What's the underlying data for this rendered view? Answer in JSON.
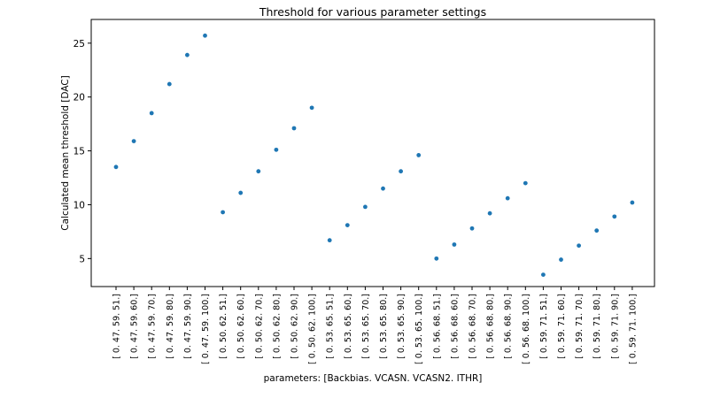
{
  "chart_data": {
    "type": "scatter",
    "title": "Threshold for various parameter settings",
    "xlabel": "parameters: [Backbias. VCASN. VCASN2. ITHR]",
    "ylabel": "Calculated mean threshold [DAC]",
    "categories": [
      "[ 0. 47. 59. 51.]",
      "[ 0. 47. 59. 60.]",
      "[ 0. 47. 59. 70.]",
      "[ 0. 47. 59. 80.]",
      "[ 0. 47. 59. 90.]",
      "[  0.  47.  59. 100.]",
      "[ 0. 50. 62. 51.]",
      "[ 0. 50. 62. 60.]",
      "[ 0. 50. 62. 70.]",
      "[ 0. 50. 62. 80.]",
      "[ 0. 50. 62. 90.]",
      "[  0.  50.  62. 100.]",
      "[ 0. 53. 65. 51.]",
      "[ 0. 53. 65. 60.]",
      "[ 0. 53. 65. 70.]",
      "[ 0. 53. 65. 80.]",
      "[ 0. 53. 65. 90.]",
      "[  0.  53.  65. 100.]",
      "[ 0. 56. 68. 51.]",
      "[ 0. 56. 68. 60.]",
      "[ 0. 56. 68. 70.]",
      "[ 0. 56. 68. 80.]",
      "[ 0. 56. 68. 90.]",
      "[  0.  56.  68. 100.]",
      "[ 0. 59. 71. 51.]",
      "[ 0. 59. 71. 60.]",
      "[ 0. 59. 71. 70.]",
      "[ 0. 59. 71. 80.]",
      "[ 0. 59. 71. 90.]",
      "[  0.  59.  71. 100.]"
    ],
    "values": [
      13.5,
      15.9,
      18.5,
      21.2,
      23.9,
      25.7,
      9.3,
      11.1,
      13.1,
      15.1,
      17.1,
      19.0,
      6.7,
      8.1,
      9.8,
      11.5,
      13.1,
      14.6,
      5.0,
      6.3,
      7.8,
      9.2,
      10.6,
      12.0,
      3.5,
      4.9,
      6.2,
      7.6,
      8.9,
      10.2
    ],
    "ylim": [
      2.4,
      27.2
    ],
    "yticks": [
      5,
      10,
      15,
      20,
      25
    ],
    "grid": false,
    "marker_color": "#1f77b4"
  }
}
